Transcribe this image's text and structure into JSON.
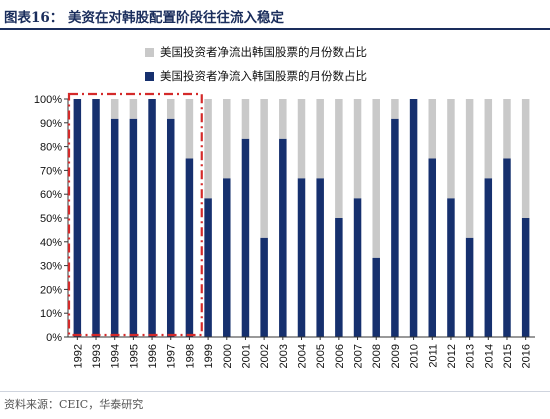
{
  "figure_title": "图表16：   美资在对韩股配置阶段往往流入稳定",
  "source": "资料来源：CEIC，华泰研究",
  "colors": {
    "inflow": "#16306e",
    "outflow": "#c9c9c9",
    "highlight": "#d42a2a",
    "title": "#1a2d5c"
  },
  "chart_data": {
    "type": "bar",
    "stacked": true,
    "categories": [
      "1992",
      "1993",
      "1994",
      "1995",
      "1996",
      "1997",
      "1998",
      "1999",
      "2000",
      "2001",
      "2002",
      "2003",
      "2004",
      "2005",
      "2006",
      "2007",
      "2008",
      "2009",
      "2010",
      "2011",
      "2012",
      "2013",
      "2014",
      "2015",
      "2016"
    ],
    "series": [
      {
        "name": "美国投资者净流入韩国股票的月份数占比",
        "color": "#16306e",
        "values": [
          100,
          100,
          91.7,
          91.7,
          100,
          91.7,
          75,
          58.3,
          66.7,
          83.3,
          41.7,
          83.3,
          66.7,
          66.7,
          50,
          58.3,
          33.3,
          91.7,
          100,
          75,
          58.3,
          41.7,
          66.7,
          75,
          50
        ]
      },
      {
        "name": "美国投资者净流出韩国股票的月份数占比",
        "color": "#c9c9c9",
        "values": [
          0,
          0,
          8.3,
          8.3,
          0,
          8.3,
          25,
          41.7,
          33.3,
          16.7,
          58.3,
          16.7,
          33.3,
          33.3,
          50,
          41.7,
          66.7,
          8.3,
          0,
          25,
          41.7,
          58.3,
          33.3,
          25,
          50
        ]
      }
    ],
    "legend": [
      "美国投资者净流出韩国股票的月份数占比",
      "美国投资者净流入韩国股票的月份数占比"
    ],
    "legend_position": "top",
    "yticks": [
      "0%",
      "10%",
      "20%",
      "30%",
      "40%",
      "50%",
      "60%",
      "70%",
      "80%",
      "90%",
      "100%"
    ],
    "ylim": [
      0,
      100
    ],
    "highlight_range": [
      "1992",
      "1998"
    ],
    "grid": false
  }
}
